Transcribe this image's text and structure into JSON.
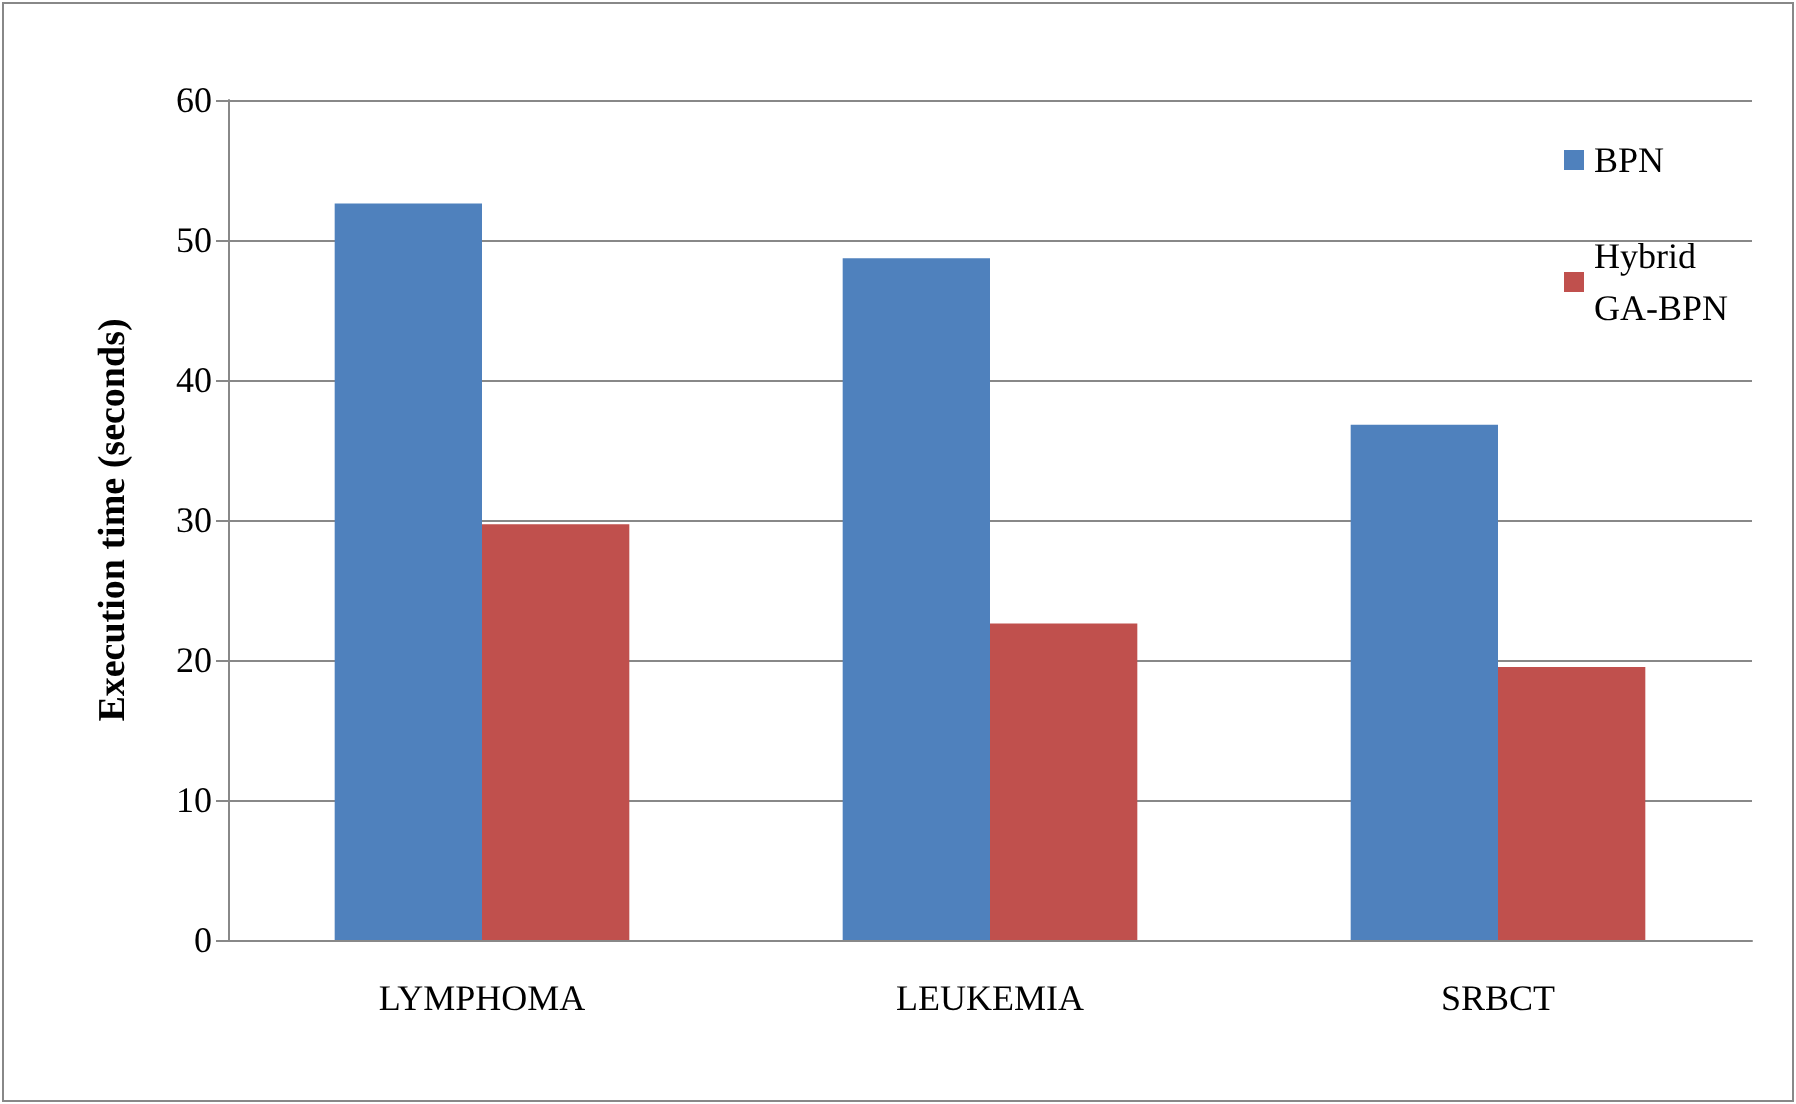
{
  "chart_data": {
    "type": "bar",
    "ylabel": "Execution time (seconds)",
    "categories": [
      "LYMPHOMA",
      "LEUKEMIA",
      "SRBCT"
    ],
    "series": [
      {
        "name": "BPN",
        "color": "#4f81bd",
        "values": [
          52.6,
          48.7,
          36.8
        ]
      },
      {
        "name": "Hybrid GA-BPN",
        "color": "#c0504d",
        "values": [
          29.7,
          22.6,
          19.5
        ]
      }
    ],
    "ylim": [
      0,
      60
    ],
    "yticks": [
      0,
      10,
      20,
      30,
      40,
      50,
      60
    ],
    "grid": "y",
    "legend": "top right"
  }
}
